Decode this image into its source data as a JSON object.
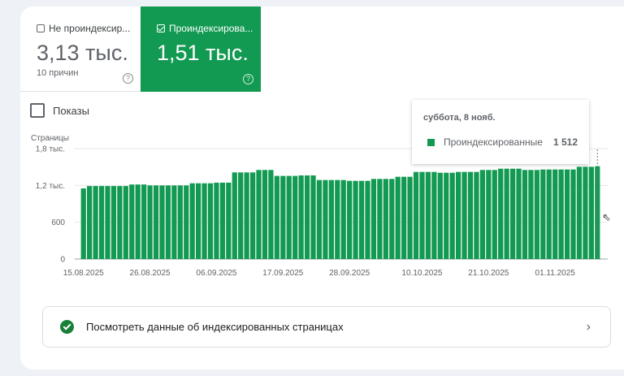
{
  "metrics": [
    {
      "label": "Не проиндексир...",
      "value": "3,13 тыс.",
      "sub": "10 причин",
      "checked": false
    },
    {
      "label": "Проиндексирова...",
      "value": "1,51 тыс.",
      "checked": true
    }
  ],
  "help_glyph": "?",
  "impressions_label": "Показы",
  "tooltip": {
    "date": "суббота, 8 нояб.",
    "series": "Проиндексированные",
    "value": "1 512"
  },
  "link": {
    "label": "Посмотреть данные об индексированных страницах",
    "chevron": "›"
  },
  "colors": {
    "bar": "#139a52",
    "accent": "#139a52"
  },
  "chart_data": {
    "type": "bar",
    "ylabel": "Страницы",
    "ylim": [
      0,
      1800
    ],
    "yticks": [
      {
        "v": 0,
        "label": "0"
      },
      {
        "v": 600,
        "label": "600"
      },
      {
        "v": 1200,
        "label": "1,2 тыс."
      },
      {
        "v": 1800,
        "label": "1,8 тыс."
      }
    ],
    "xtick_labels": [
      {
        "i": 0,
        "label": "15.08.2025"
      },
      {
        "i": 11,
        "label": "26.08.2025"
      },
      {
        "i": 22,
        "label": "06.09.2025"
      },
      {
        "i": 33,
        "label": "17.09.2025"
      },
      {
        "i": 44,
        "label": "28.09.2025"
      },
      {
        "i": 56,
        "label": "10.10.2025"
      },
      {
        "i": 67,
        "label": "21.10.2025"
      },
      {
        "i": 78,
        "label": "01.11.2025"
      }
    ],
    "start_date": "15.08.2025",
    "end_date": "08.11.2025",
    "series": [
      {
        "name": "Проиндексированные",
        "values": [
          1151,
          1190,
          1190,
          1190,
          1190,
          1190,
          1190,
          1190,
          1215,
          1215,
          1215,
          1200,
          1200,
          1200,
          1200,
          1200,
          1200,
          1200,
          1235,
          1235,
          1235,
          1235,
          1245,
          1245,
          1245,
          1412,
          1412,
          1412,
          1412,
          1452,
          1452,
          1452,
          1355,
          1355,
          1355,
          1355,
          1363,
          1363,
          1363,
          1288,
          1288,
          1288,
          1288,
          1288,
          1275,
          1275,
          1275,
          1275,
          1306,
          1306,
          1306,
          1306,
          1341,
          1341,
          1341,
          1420,
          1420,
          1420,
          1420,
          1407,
          1407,
          1407,
          1420,
          1420,
          1420,
          1420,
          1452,
          1452,
          1452,
          1473,
          1473,
          1473,
          1473,
          1452,
          1452,
          1452,
          1460,
          1460,
          1460,
          1460,
          1460,
          1460,
          1504,
          1504,
          1504,
          1512
        ]
      }
    ]
  }
}
